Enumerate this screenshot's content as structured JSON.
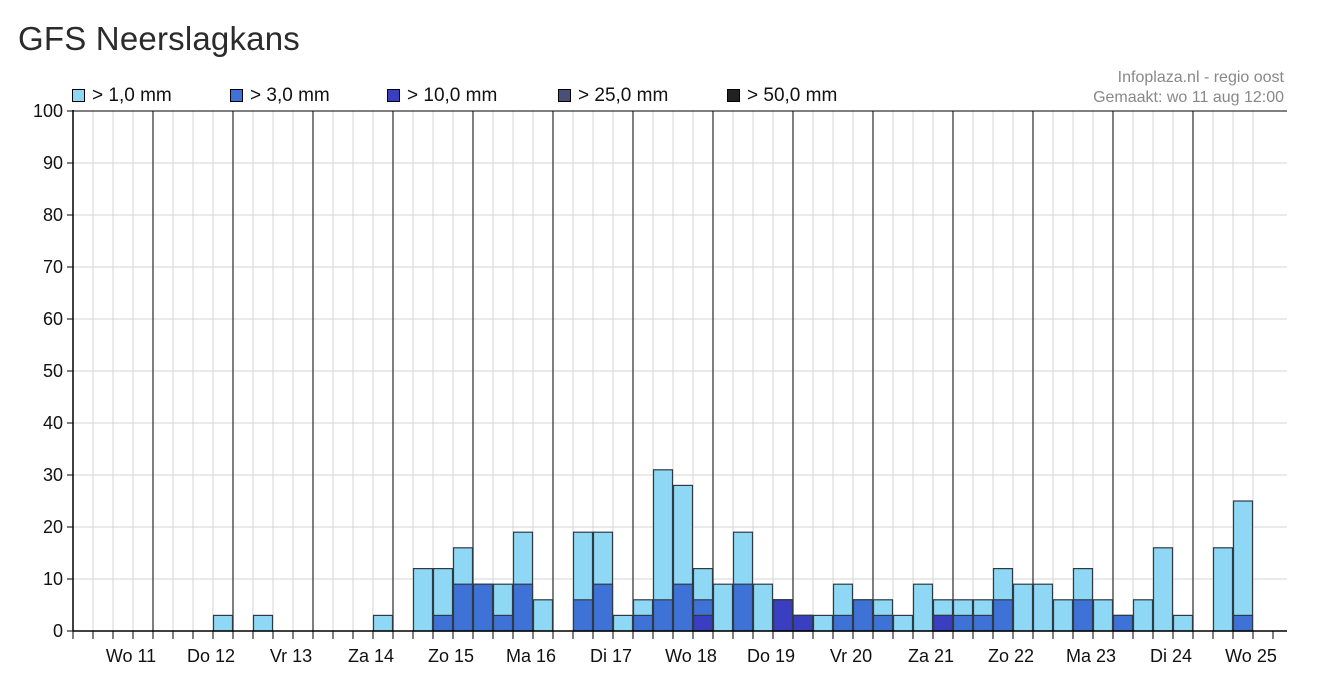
{
  "title": "GFS Neerslagkans",
  "credits": {
    "source": "Infoplaza.nl - regio oost",
    "made": "Gemaakt: wo 11 aug 12:00"
  },
  "legend": [
    {
      "label": "> 1,0 mm",
      "color": "#8fd8f5"
    },
    {
      "label": "> 3,0 mm",
      "color": "#3f72d6"
    },
    {
      "label": "> 10,0 mm",
      "color": "#3a3ec0"
    },
    {
      "label": "> 25,0 mm",
      "color": "#4a4f7a"
    },
    {
      "label": "> 50,0 mm",
      "color": "#222222"
    }
  ],
  "chart_data": {
    "type": "bar",
    "stacked": "overlay",
    "ylim": [
      0,
      100
    ],
    "yticks": [
      0,
      10,
      20,
      30,
      40,
      50,
      60,
      70,
      80,
      90,
      100
    ],
    "grid": true,
    "legend_position": "top",
    "day_labels": [
      "Wo 11",
      "Do 12",
      "Vr 13",
      "Za 14",
      "Zo 15",
      "Ma 16",
      "Di 17",
      "Wo 18",
      "Do 19",
      "Vr 20",
      "Za 21",
      "Zo 22",
      "Ma 23",
      "Di 24",
      "Wo 25"
    ],
    "bars_per_day": 4,
    "series": [
      {
        "name": "> 1,0 mm",
        "color": "#8fd8f5",
        "values": [
          0,
          0,
          0,
          0,
          0,
          0,
          0,
          3,
          0,
          3,
          0,
          0,
          0,
          0,
          0,
          3,
          0,
          12,
          12,
          16,
          9,
          9,
          19,
          6,
          0,
          19,
          19,
          3,
          6,
          31,
          28,
          12,
          9,
          19,
          9,
          6,
          3,
          3,
          9,
          6,
          6,
          3,
          9,
          6,
          6,
          6,
          12,
          9,
          9,
          6,
          12,
          6,
          3,
          6,
          16,
          3,
          0,
          16,
          25
        ]
      },
      {
        "name": "> 3,0 mm",
        "color": "#3f72d6",
        "values": [
          0,
          0,
          0,
          0,
          0,
          0,
          0,
          0,
          0,
          0,
          0,
          0,
          0,
          0,
          0,
          0,
          0,
          0,
          3,
          9,
          9,
          3,
          9,
          0,
          0,
          6,
          9,
          0,
          3,
          6,
          9,
          6,
          0,
          9,
          0,
          6,
          3,
          0,
          3,
          6,
          3,
          0,
          0,
          3,
          3,
          3,
          6,
          0,
          0,
          0,
          6,
          0,
          3,
          0,
          0,
          0,
          0,
          0,
          3
        ]
      },
      {
        "name": "> 10,0 mm",
        "color": "#3a3ec0",
        "values": [
          0,
          0,
          0,
          0,
          0,
          0,
          0,
          0,
          0,
          0,
          0,
          0,
          0,
          0,
          0,
          0,
          0,
          0,
          0,
          0,
          0,
          0,
          0,
          0,
          0,
          0,
          0,
          0,
          0,
          0,
          0,
          3,
          0,
          0,
          0,
          6,
          3,
          0,
          0,
          0,
          0,
          0,
          0,
          3,
          0,
          0,
          0,
          0,
          0,
          0,
          0,
          0,
          0,
          0,
          0,
          0,
          0,
          0,
          0
        ]
      },
      {
        "name": "> 25,0 mm",
        "color": "#4a4f7a",
        "values": [
          0,
          0,
          0,
          0,
          0,
          0,
          0,
          0,
          0,
          0,
          0,
          0,
          0,
          0,
          0,
          0,
          0,
          0,
          0,
          0,
          0,
          0,
          0,
          0,
          0,
          0,
          0,
          0,
          0,
          0,
          0,
          0,
          0,
          0,
          0,
          0,
          0,
          0,
          0,
          0,
          0,
          0,
          0,
          0,
          0,
          0,
          0,
          0,
          0,
          0,
          0,
          0,
          0,
          0,
          0,
          0,
          0,
          0,
          0
        ]
      },
      {
        "name": "> 50,0 mm",
        "color": "#222222",
        "values": [
          0,
          0,
          0,
          0,
          0,
          0,
          0,
          0,
          0,
          0,
          0,
          0,
          0,
          0,
          0,
          0,
          0,
          0,
          0,
          0,
          0,
          0,
          0,
          0,
          0,
          0,
          0,
          0,
          0,
          0,
          0,
          0,
          0,
          0,
          0,
          0,
          0,
          0,
          0,
          0,
          0,
          0,
          0,
          0,
          0,
          0,
          0,
          0,
          0,
          0,
          0,
          0,
          0,
          0,
          0,
          0,
          0,
          0,
          0
        ]
      }
    ]
  }
}
